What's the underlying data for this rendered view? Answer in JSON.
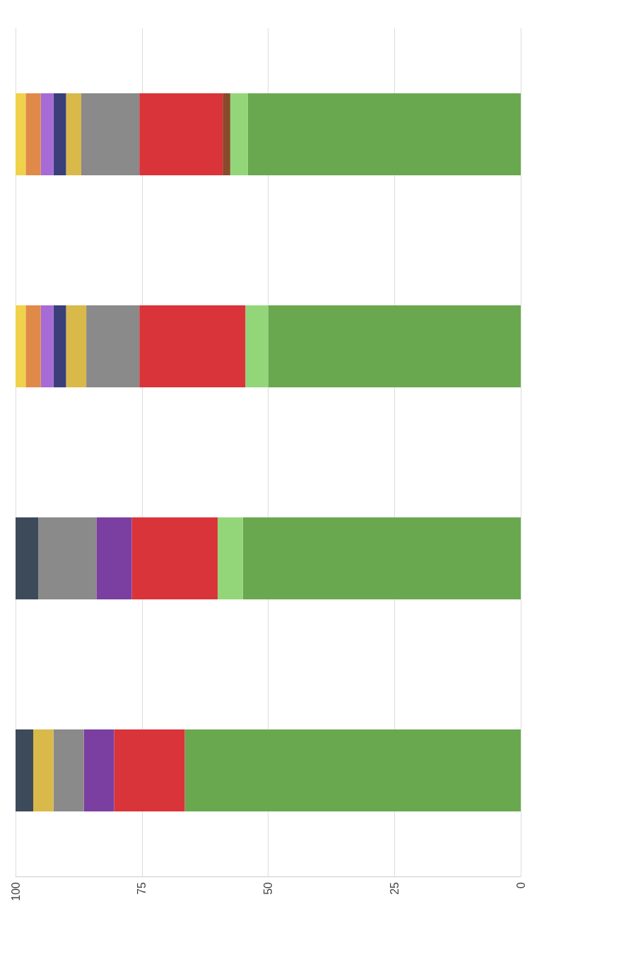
{
  "chart_data": {
    "type": "bar",
    "orientation": "horizontal",
    "stacked": true,
    "categories": [
      null,
      null,
      null,
      null
    ],
    "xlim": [
      100,
      0
    ],
    "xticks": [
      100,
      75,
      50,
      25,
      0
    ],
    "grid": "x",
    "series": [
      {
        "color": "#6aa84f",
        "values": [
          54,
          50,
          55,
          66.5
        ]
      },
      {
        "color": "#93d67a",
        "values": [
          3.5,
          4.5,
          5,
          null
        ]
      },
      {
        "color": "#8b4a2b",
        "values": [
          1.5,
          null,
          null,
          null
        ]
      },
      {
        "color": "#d9343a",
        "values": [
          16.5,
          21,
          17,
          14
        ]
      },
      {
        "color": "#7a3fa0",
        "values": [
          null,
          null,
          7,
          6
        ]
      },
      {
        "color": "#8a8a8a",
        "values": [
          11.5,
          10.5,
          11.5,
          6
        ]
      },
      {
        "color": "#d9b94a",
        "values": [
          3,
          4,
          null,
          4
        ]
      },
      {
        "color": "#3a3f7a",
        "values": [
          2.5,
          2.5,
          null,
          null
        ]
      },
      {
        "color": "#a66bd6",
        "values": [
          2.5,
          2.5,
          null,
          null
        ]
      },
      {
        "color": "#e08a4a",
        "values": [
          3,
          3,
          null,
          null
        ]
      },
      {
        "color": "#3d4a5a",
        "values": [
          null,
          null,
          4.5,
          3.5
        ]
      },
      {
        "color": "#f0d24a",
        "values": [
          2,
          2,
          null,
          null
        ]
      }
    ]
  }
}
